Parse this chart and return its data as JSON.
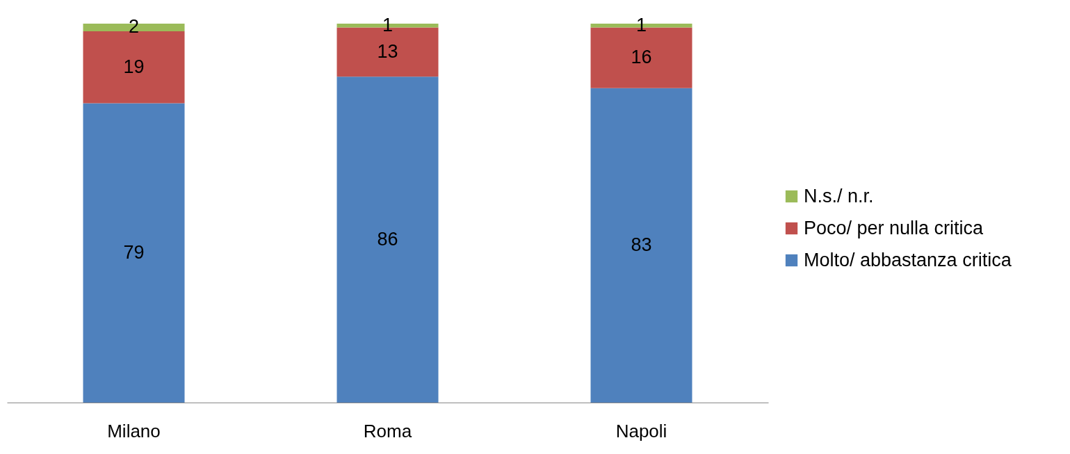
{
  "chart_data": {
    "type": "bar",
    "stacked": true,
    "categories": [
      "Milano",
      "Roma",
      "Napoli"
    ],
    "series": [
      {
        "name": "Molto/ abbastanza critica",
        "color": "#4f81bd",
        "values": [
          79,
          86,
          83
        ]
      },
      {
        "name": "Poco/ per nulla critica",
        "color": "#c0504d",
        "values": [
          19,
          13,
          16
        ]
      },
      {
        "name": "N.s./ n.r.",
        "color": "#9bbb59",
        "values": [
          2,
          1,
          1
        ]
      }
    ],
    "ylim": [
      0,
      100
    ],
    "tick_labels": "x",
    "data_labels": true,
    "legend": "right"
  }
}
